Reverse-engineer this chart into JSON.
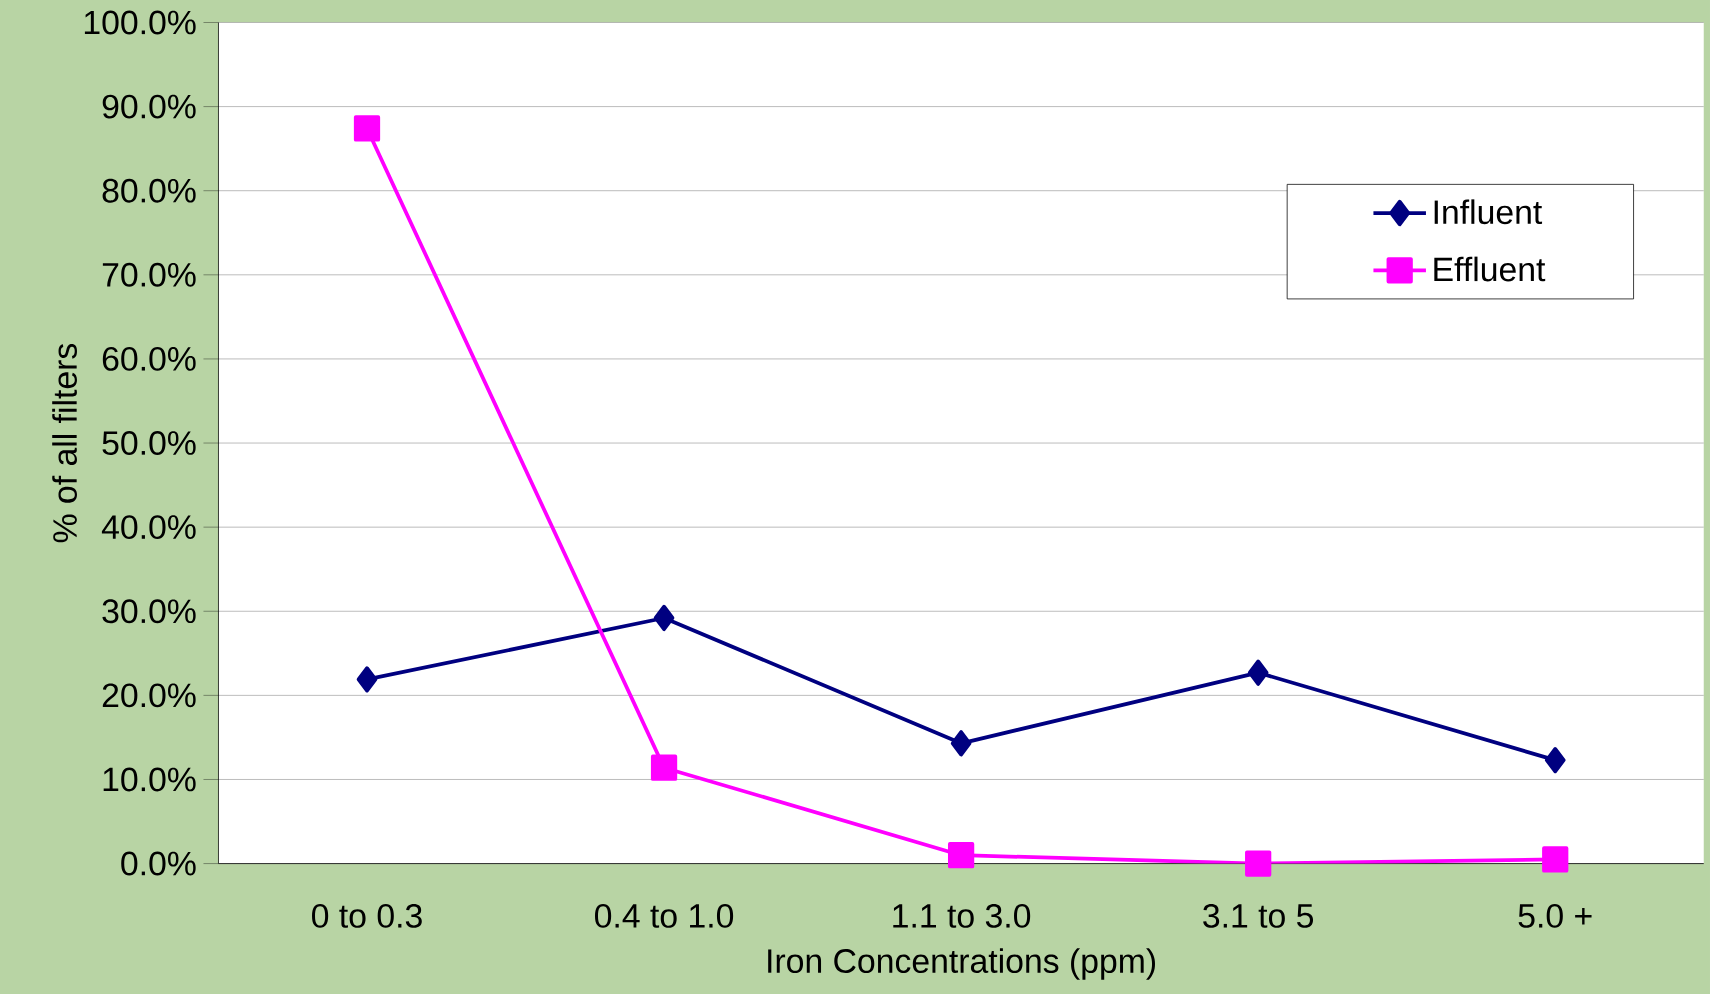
{
  "chart_data": {
    "type": "line",
    "xlabel": "Iron Concentrations (ppm)",
    "ylabel": "% of all filters",
    "categories": [
      "0 to 0.3",
      "0.4 to 1.0",
      "1.1 to 3.0",
      "3.1 to 5",
      "5.0 +"
    ],
    "series": [
      {
        "name": "Influent",
        "color": "#000080",
        "marker": "diamond",
        "values": [
          21.9,
          29.2,
          14.3,
          22.7,
          12.3
        ]
      },
      {
        "name": "Effluent",
        "color": "#ff00ff",
        "marker": "square",
        "values": [
          87.4,
          11.4,
          1.0,
          0.0,
          0.5
        ]
      }
    ],
    "ylim": [
      0,
      100
    ],
    "yticks": [
      {
        "value": 0,
        "label": "0.0%"
      },
      {
        "value": 10,
        "label": "10.0%"
      },
      {
        "value": 20,
        "label": "20.0%"
      },
      {
        "value": 30,
        "label": "30.0%"
      },
      {
        "value": 40,
        "label": "40.0%"
      },
      {
        "value": 50,
        "label": "50.0%"
      },
      {
        "value": 60,
        "label": "60.0%"
      },
      {
        "value": 70,
        "label": "70.0%"
      },
      {
        "value": 80,
        "label": "80.0%"
      },
      {
        "value": 90,
        "label": "90.0%"
      },
      {
        "value": 100,
        "label": "100.0%"
      }
    ],
    "grid": "y",
    "legend": "top right",
    "line_style": "solid"
  }
}
